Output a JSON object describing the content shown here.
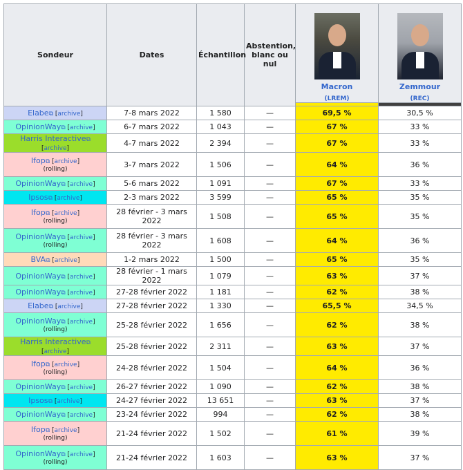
{
  "header": {
    "sondeur": "Sondeur",
    "dates": "Dates",
    "echantillon": "Échantillon",
    "abstention": "Abstention, blanc ou nul",
    "candidates": [
      {
        "name": "Macron",
        "party": "(LREM)",
        "color": "#ffeb00"
      },
      {
        "name": "Zemmour",
        "party": "(REC)",
        "color": "#404040"
      }
    ]
  },
  "archive_label": "archive",
  "rolling_label": "(rolling)",
  "ext_icon": "⧉",
  "colors": {
    "Elabe": "#ccd5f5",
    "OpinionWay": "#7fffd4",
    "Harris Interactive": "#9bdd2b",
    "Ifop": "#ffd0d0",
    "Ipsos": "#00e6f0",
    "BVA": "#ffdab9"
  },
  "rows": [
    {
      "pollster": "Elabe",
      "rolling": false,
      "dates": "7-8 mars 2022",
      "sample": "1 580",
      "abst": "—",
      "macron": "69,5 %",
      "zemmour": "30,5 %"
    },
    {
      "pollster": "OpinionWay",
      "rolling": false,
      "dates": "6-7 mars 2022",
      "sample": "1 043",
      "abst": "—",
      "macron": "67 %",
      "zemmour": "33 %"
    },
    {
      "pollster": "Harris Interactive",
      "rolling": false,
      "dates": "4-7 mars 2022",
      "sample": "2 394",
      "abst": "—",
      "macron": "67 %",
      "zemmour": "33 %"
    },
    {
      "pollster": "Ifop",
      "rolling": true,
      "dates": "3-7 mars 2022",
      "sample": "1 506",
      "abst": "—",
      "macron": "64 %",
      "zemmour": "36 %"
    },
    {
      "pollster": "OpinionWay",
      "rolling": false,
      "dates": "5-6 mars 2022",
      "sample": "1 091",
      "abst": "—",
      "macron": "67 %",
      "zemmour": "33 %"
    },
    {
      "pollster": "Ipsos",
      "rolling": false,
      "dates": "2-3 mars 2022",
      "sample": "3 599",
      "abst": "—",
      "macron": "65 %",
      "zemmour": "35 %"
    },
    {
      "pollster": "Ifop",
      "rolling": true,
      "dates": "28 février - 3 mars 2022",
      "sample": "1 508",
      "abst": "—",
      "macron": "65 %",
      "zemmour": "35 %"
    },
    {
      "pollster": "OpinionWay",
      "rolling": true,
      "dates": "28 février - 3 mars 2022",
      "sample": "1 608",
      "abst": "—",
      "macron": "64 %",
      "zemmour": "36 %"
    },
    {
      "pollster": "BVA",
      "rolling": false,
      "dates": "1-2 mars 2022",
      "sample": "1 500",
      "abst": "—",
      "macron": "65 %",
      "zemmour": "35 %"
    },
    {
      "pollster": "OpinionWay",
      "rolling": false,
      "dates": "28 février - 1 mars 2022",
      "sample": "1 079",
      "abst": "—",
      "macron": "63 %",
      "zemmour": "37 %"
    },
    {
      "pollster": "OpinionWay",
      "rolling": false,
      "dates": "27-28 février 2022",
      "sample": "1 181",
      "abst": "—",
      "macron": "62 %",
      "zemmour": "38 %"
    },
    {
      "pollster": "Elabe",
      "rolling": false,
      "dates": "27-28 février 2022",
      "sample": "1 330",
      "abst": "—",
      "macron": "65,5 %",
      "zemmour": "34,5 %"
    },
    {
      "pollster": "OpinionWay",
      "rolling": true,
      "dates": "25-28 février 2022",
      "sample": "1 656",
      "abst": "—",
      "macron": "62 %",
      "zemmour": "38 %"
    },
    {
      "pollster": "Harris Interactive",
      "rolling": false,
      "dates": "25-28 février 2022",
      "sample": "2 311",
      "abst": "—",
      "macron": "63 %",
      "zemmour": "37 %"
    },
    {
      "pollster": "Ifop",
      "rolling": true,
      "dates": "24-28 février 2022",
      "sample": "1 504",
      "abst": "—",
      "macron": "64 %",
      "zemmour": "36 %"
    },
    {
      "pollster": "OpinionWay",
      "rolling": false,
      "dates": "26-27 février 2022",
      "sample": "1 090",
      "abst": "—",
      "macron": "62 %",
      "zemmour": "38 %"
    },
    {
      "pollster": "Ipsos",
      "rolling": false,
      "dates": "24-27 février 2022",
      "sample": "13 651",
      "abst": "—",
      "macron": "63 %",
      "zemmour": "37 %"
    },
    {
      "pollster": "OpinionWay",
      "rolling": false,
      "dates": "23-24 février 2022",
      "sample": "994",
      "abst": "—",
      "macron": "62 %",
      "zemmour": "38 %"
    },
    {
      "pollster": "Ifop",
      "rolling": true,
      "dates": "21-24 février 2022",
      "sample": "1 502",
      "abst": "—",
      "macron": "61 %",
      "zemmour": "39 %"
    },
    {
      "pollster": "OpinionWay",
      "rolling": true,
      "dates": "21-24 février 2022",
      "sample": "1 603",
      "abst": "—",
      "macron": "63 %",
      "zemmour": "37 %"
    }
  ]
}
